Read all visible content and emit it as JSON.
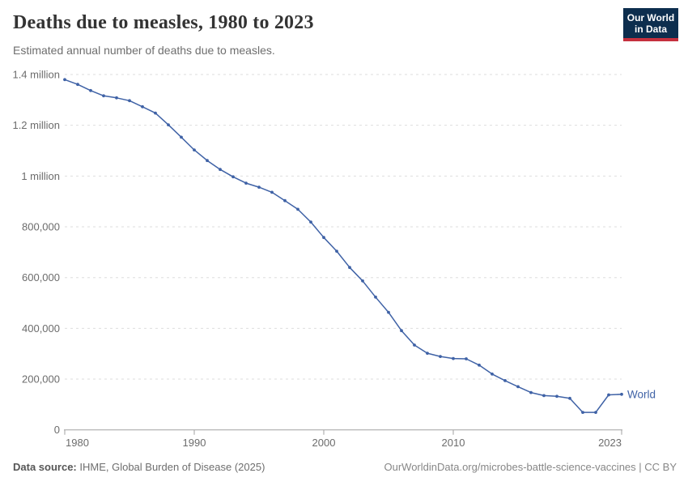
{
  "header": {
    "title": "Deaths due to measles, 1980 to 2023",
    "subtitle": "Estimated annual number of deaths due to measles.",
    "logo": {
      "line1": "Our World",
      "line2": "in Data",
      "bg_color": "#0d2e4e",
      "accent_color": "#c5303e"
    }
  },
  "chart_data": {
    "type": "line",
    "title": "Deaths due to measles, 1980 to 2023",
    "xlabel": "",
    "ylabel": "",
    "xlim": [
      1980,
      2023
    ],
    "ylim": [
      0,
      1400000
    ],
    "grid": "horizontal-dashed",
    "legend_position": "end-of-line-label",
    "x": [
      1980,
      1981,
      1982,
      1983,
      1984,
      1985,
      1986,
      1987,
      1988,
      1989,
      1990,
      1991,
      1992,
      1993,
      1994,
      1995,
      1996,
      1997,
      1998,
      1999,
      2000,
      2001,
      2002,
      2003,
      2004,
      2005,
      2006,
      2007,
      2008,
      2009,
      2010,
      2011,
      2012,
      2013,
      2014,
      2015,
      2016,
      2017,
      2018,
      2019,
      2020,
      2021,
      2022,
      2023
    ],
    "series": [
      {
        "name": "World",
        "color": "#3F62A6",
        "values": [
          1380000,
          1361000,
          1337000,
          1316000,
          1308000,
          1297000,
          1273000,
          1248000,
          1202000,
          1153000,
          1103000,
          1061000,
          1026000,
          997000,
          972000,
          956000,
          936000,
          903000,
          869000,
          819000,
          758000,
          704000,
          640000,
          587000,
          523000,
          463000,
          391000,
          334000,
          302000,
          289000,
          281000,
          280000,
          255000,
          220000,
          194000,
          170000,
          147000,
          135000,
          132000,
          124000,
          69000,
          69000,
          138000,
          140000
        ]
      }
    ],
    "yticks": [
      {
        "value": 1400000,
        "label": "1.4 million"
      },
      {
        "value": 1200000,
        "label": "1.2 million"
      },
      {
        "value": 1000000,
        "label": "1 million"
      },
      {
        "value": 800000,
        "label": "800,000"
      },
      {
        "value": 600000,
        "label": "600,000"
      },
      {
        "value": 400000,
        "label": "400,000"
      },
      {
        "value": 200000,
        "label": "200,000"
      }
    ],
    "y_zero_label": "0",
    "xticks": [
      {
        "year": 1980,
        "label": "1980",
        "align": "start"
      },
      {
        "year": 1990,
        "label": "1990",
        "align": "middle"
      },
      {
        "year": 2000,
        "label": "2000",
        "align": "middle"
      },
      {
        "year": 2010,
        "label": "2010",
        "align": "middle"
      },
      {
        "year": 2023,
        "label": "2023",
        "align": "end"
      }
    ],
    "colors": {
      "gridline": "#dedede",
      "axis": "#a1a1a1",
      "tick_text": "#6c6c6c"
    }
  },
  "footer": {
    "datasource_label": "Data source:",
    "datasource_text": " IHME, Global Burden of Disease (2025)",
    "link_text": "OurWorldinData.org/microbes-battle-science-vaccines | CC BY"
  }
}
